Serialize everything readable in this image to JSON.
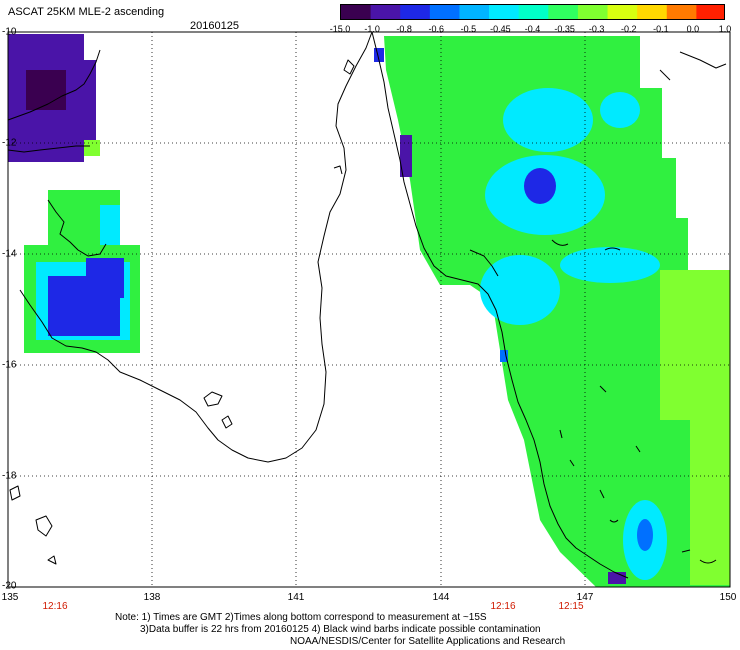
{
  "header": {
    "title": "ASCAT 25KM MLE-2 ascending",
    "date": "20160125"
  },
  "colorbar": {
    "ticks": [
      "-15.0",
      "-1.0",
      "-0.8",
      "-0.6",
      "-0.5",
      "-0.45",
      "-0.4",
      "-0.35",
      "-0.3",
      "-0.2",
      "-0.1",
      "0.0",
      "1.0"
    ],
    "colors": [
      "#3a0050",
      "#4a14a8",
      "#1e28e6",
      "#0070ff",
      "#00b4ff",
      "#00eaff",
      "#00ffc8",
      "#30ff60",
      "#80ff30",
      "#d8ff10",
      "#ffd800",
      "#ff7a00",
      "#ff2000"
    ]
  },
  "axes": {
    "lat_labels": [
      "-10",
      "-12",
      "-14",
      "-16",
      "-18",
      "-20"
    ],
    "lon_labels": [
      "135",
      "138",
      "141",
      "144",
      "147",
      "150"
    ]
  },
  "times": [
    "12:16",
    "12:16",
    "12:15"
  ],
  "notes": [
    "Note: 1) Times are GMT 2)Times along bottom correspond to measurement at ~15S",
    "3)Data buffer is 22 hrs from 20160125 4) Black wind barbs indicate possible contamination",
    "NOAA/NESDIS/Center for Satellite Applications and Research"
  ],
  "palette": {
    "green": "#30f040",
    "light_green": "#80ff30",
    "cyan": "#00eaff",
    "blue": "#1e28e6",
    "purple": "#4a14a8"
  }
}
